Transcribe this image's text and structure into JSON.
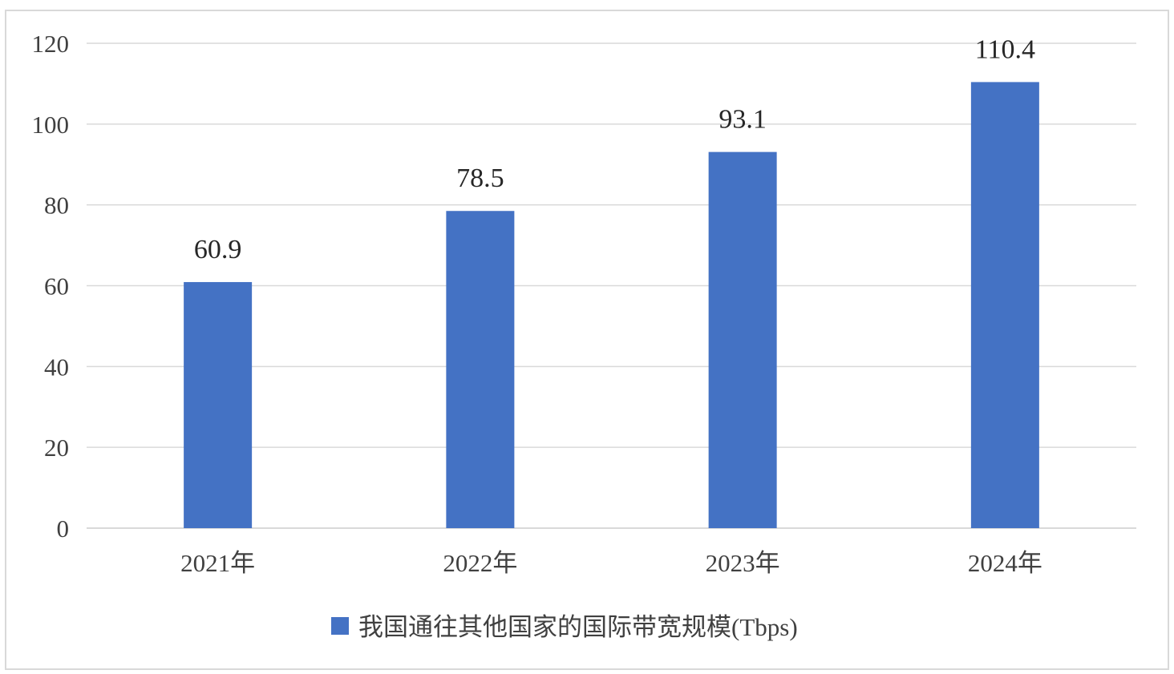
{
  "chart_data": {
    "type": "bar",
    "categories": [
      "2021年",
      "2022年",
      "2023年",
      "2024年"
    ],
    "series": [
      {
        "name": "我国通往其他国家的国际带宽规模(Tbps)",
        "values": [
          60.9,
          78.5,
          93.1,
          110.4
        ],
        "color": "#4472c4"
      }
    ],
    "data_labels": [
      "60.9",
      "78.5",
      "93.1",
      "110.4"
    ],
    "ylim": [
      0,
      120
    ],
    "yticks": [
      0,
      20,
      40,
      60,
      80,
      100,
      120
    ],
    "title": "",
    "xlabel": "",
    "ylabel": "",
    "grid": true,
    "legend_position": "bottom",
    "gridline_color": "#d9d9d9",
    "axis_color": "#d9d9d9"
  }
}
